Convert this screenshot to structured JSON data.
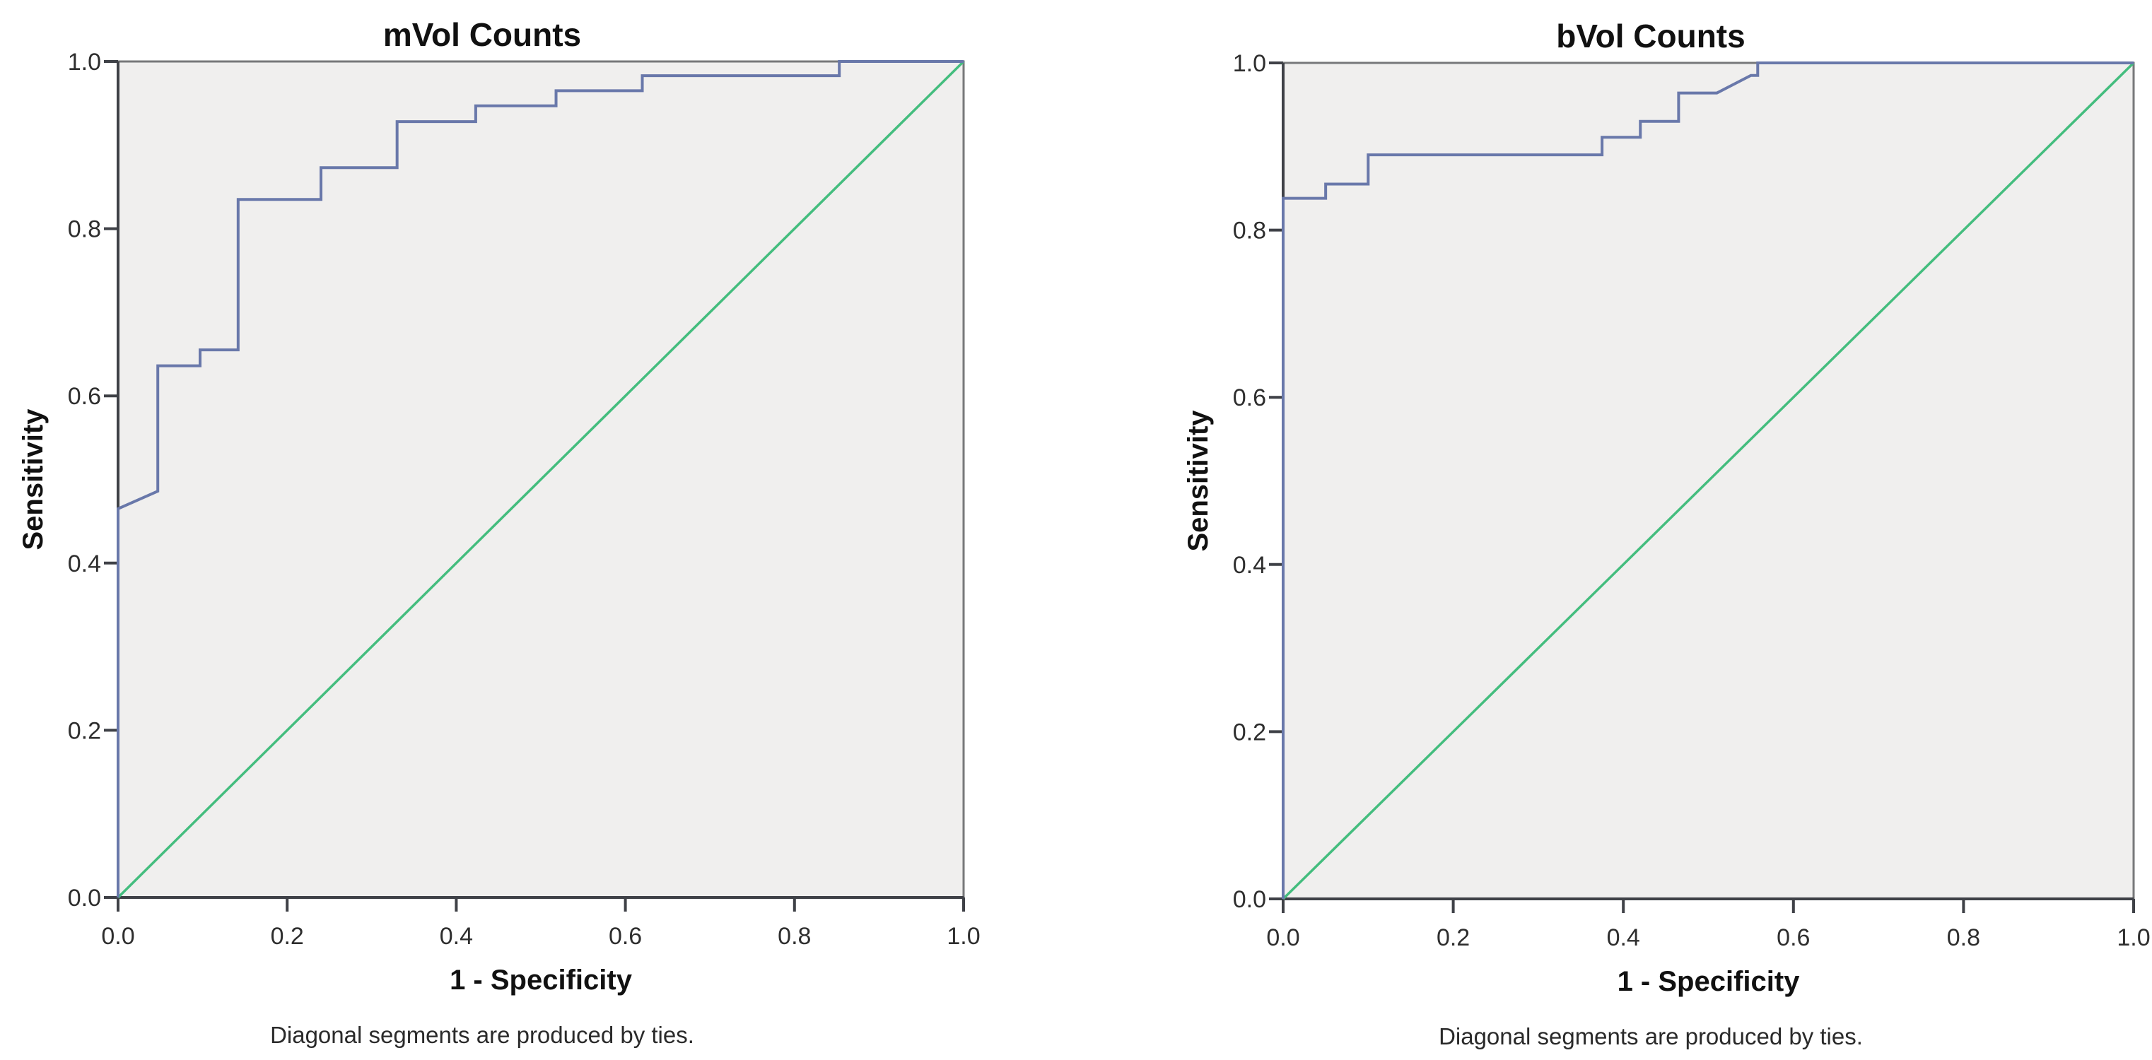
{
  "page": {
    "background": "#ffffff"
  },
  "styles": {
    "frame_color": "#77787a",
    "axis_color": "#3f4147",
    "plot_bg": "#f0efee",
    "curve_color": "#6978aa",
    "reference_color": "#44bd7e"
  },
  "chart_data": [
    {
      "type": "line",
      "title": "mVol Counts",
      "xlabel": "1 - Specificity",
      "ylabel": "Sensitivity",
      "caption": "Diagonal segments are produced by ties.",
      "xlim": [
        0,
        1
      ],
      "ylim": [
        0,
        1
      ],
      "xticks": [
        "0.0",
        "0.2",
        "0.4",
        "0.6",
        "0.8",
        "1.0"
      ],
      "yticks": [
        "0.0",
        "0.2",
        "0.4",
        "0.6",
        "0.8",
        "1.0"
      ],
      "grid": false,
      "legend": "none",
      "plot_bg": "#f0efee",
      "series": [
        {
          "name": "ROC curve",
          "color": "#6978aa",
          "points": [
            [
              0,
              0
            ],
            [
              0,
              0.465
            ],
            [
              0.047,
              0.486
            ],
            [
              0.047,
              0.636
            ],
            [
              0.097,
              0.636
            ],
            [
              0.097,
              0.655
            ],
            [
              0.142,
              0.655
            ],
            [
              0.142,
              0.835
            ],
            [
              0.24,
              0.835
            ],
            [
              0.24,
              0.873
            ],
            [
              0.33,
              0.873
            ],
            [
              0.33,
              0.928
            ],
            [
              0.423,
              0.928
            ],
            [
              0.423,
              0.947
            ],
            [
              0.518,
              0.947
            ],
            [
              0.518,
              0.965
            ],
            [
              0.62,
              0.965
            ],
            [
              0.62,
              0.983
            ],
            [
              0.853,
              0.983
            ],
            [
              0.853,
              1
            ],
            [
              1,
              1
            ]
          ]
        },
        {
          "name": "reference line",
          "color": "#44bd7e",
          "points": [
            [
              0,
              0
            ],
            [
              1,
              1
            ]
          ]
        }
      ]
    },
    {
      "type": "line",
      "title": "bVol Counts",
      "xlabel": "1 - Specificity",
      "ylabel": "Sensitivity",
      "caption": "Diagonal segments are produced by ties.",
      "xlim": [
        0,
        1
      ],
      "ylim": [
        0,
        1
      ],
      "xticks": [
        "0.0",
        "0.2",
        "0.4",
        "0.6",
        "0.8",
        "1.0"
      ],
      "yticks": [
        "0.0",
        "0.2",
        "0.4",
        "0.6",
        "0.8",
        "1.0"
      ],
      "grid": false,
      "legend": "none",
      "plot_bg": "#f0efee",
      "series": [
        {
          "name": "ROC curve",
          "color": "#6978aa",
          "points": [
            [
              0,
              0
            ],
            [
              0,
              0.838
            ],
            [
              0.05,
              0.838
            ],
            [
              0.05,
              0.855
            ],
            [
              0.1,
              0.855
            ],
            [
              0.1,
              0.89
            ],
            [
              0.375,
              0.89
            ],
            [
              0.375,
              0.911
            ],
            [
              0.42,
              0.911
            ],
            [
              0.42,
              0.93
            ],
            [
              0.465,
              0.93
            ],
            [
              0.465,
              0.964
            ],
            [
              0.51,
              0.964
            ],
            [
              0.55,
              0.985
            ],
            [
              0.558,
              0.985
            ],
            [
              0.558,
              1
            ],
            [
              1,
              1
            ]
          ]
        },
        {
          "name": "reference line",
          "color": "#44bd7e",
          "points": [
            [
              0,
              0
            ],
            [
              1,
              1
            ]
          ]
        }
      ]
    }
  ]
}
